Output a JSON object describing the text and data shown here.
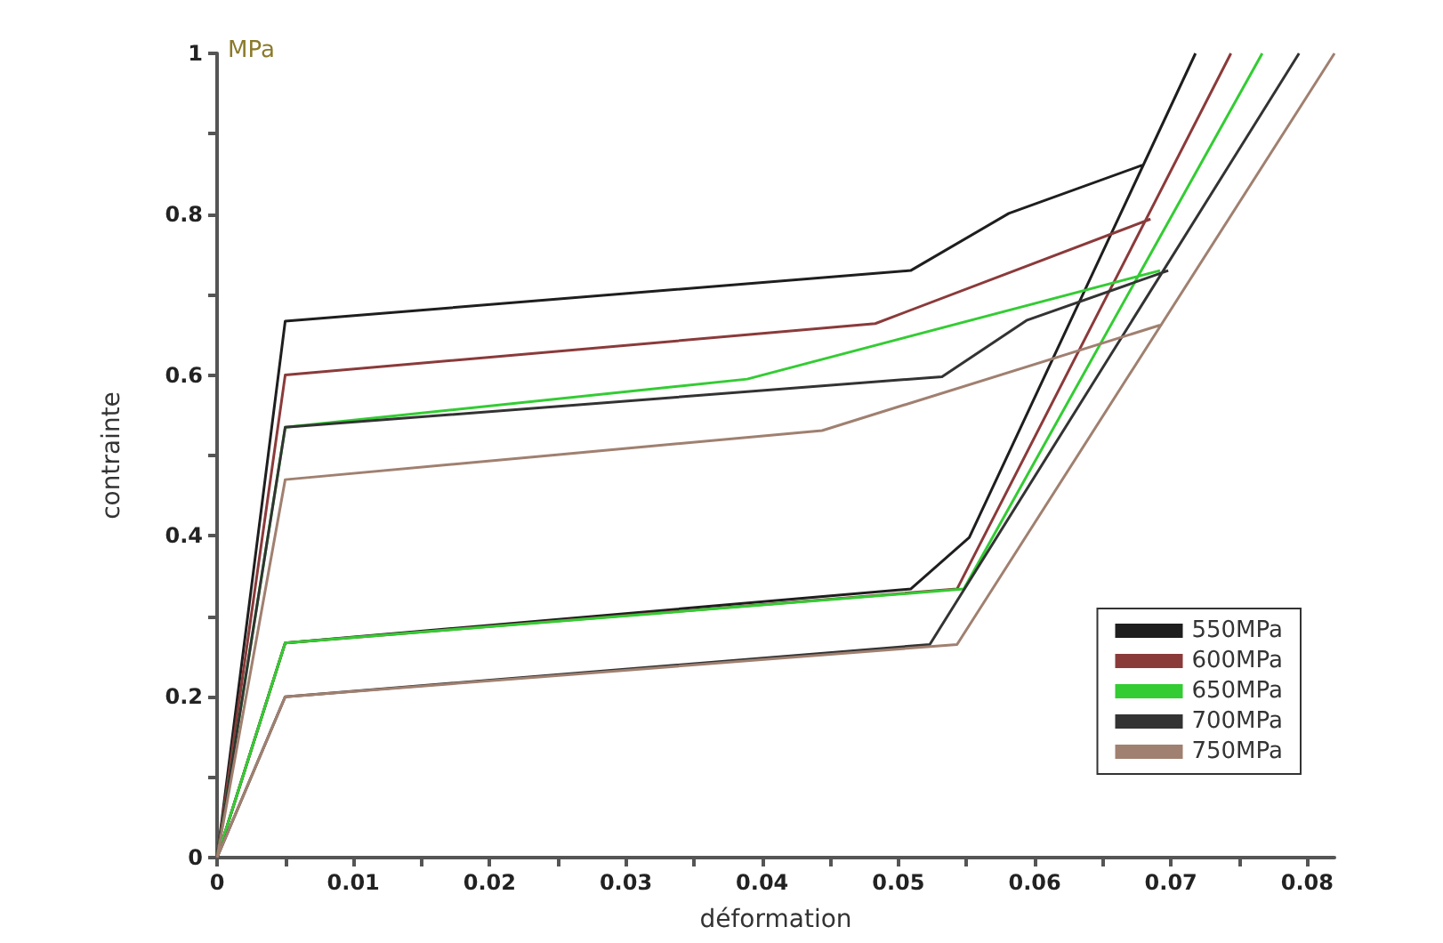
{
  "chart_data": {
    "type": "line",
    "xlabel": "déformation",
    "ylabel": "contrainte",
    "annotations": [
      "MPa"
    ],
    "xlim": [
      0,
      0.082
    ],
    "ylim": [
      0,
      1
    ],
    "xticks": [
      0,
      {
        "value": 0.005,
        "label": null
      },
      0.01,
      {
        "value": 0.015,
        "label": null
      },
      0.02,
      {
        "value": 0.025,
        "label": null
      },
      0.03,
      {
        "value": 0.035,
        "label": null
      },
      0.04,
      {
        "value": 0.045,
        "label": null
      },
      0.05,
      {
        "value": 0.055,
        "label": null
      },
      0.06,
      {
        "value": 0.065,
        "label": null
      },
      0.07,
      {
        "value": 0.075,
        "label": null
      },
      0.08
    ],
    "yticks": [
      0,
      {
        "value": 0.1,
        "label": null
      },
      0.2,
      {
        "value": 0.3,
        "label": null
      },
      0.4,
      {
        "value": 0.5,
        "label": null
      },
      0.6,
      {
        "value": 0.7,
        "label": null
      },
      0.8,
      {
        "value": 0.9,
        "label": null
      },
      1
    ],
    "legend": "bottom right",
    "grid": false,
    "marker": "none",
    "line_style": "solid",
    "series": [
      {
        "name": "550MPa",
        "color": "#1e1e1e",
        "x": [
          0,
          0.005,
          0.0509,
          0.0581,
          0.0679,
          null,
          0,
          0.005,
          0.0509,
          0.0552,
          0.0718
        ],
        "values": [
          0,
          0.667,
          0.73,
          0.801,
          0.861,
          null,
          0,
          0.267,
          0.334,
          0.398,
          1
        ]
      },
      {
        "name": "600MPa",
        "color": "#8b3a3a",
        "x": [
          0,
          0.005,
          0.0483,
          0.0685,
          null,
          0,
          0.005,
          0.0543,
          0.0744
        ],
        "values": [
          0,
          0.6,
          0.664,
          0.794,
          null,
          0,
          0.267,
          0.334,
          1
        ]
      },
      {
        "name": "650MPa",
        "color": "#33cc33",
        "x": [
          0,
          0.005,
          0.0389,
          0.0692,
          null,
          0,
          0.005,
          0.0548,
          0.0767
        ],
        "values": [
          0,
          0.535,
          0.595,
          0.73,
          null,
          0,
          0.267,
          0.334,
          1
        ]
      },
      {
        "name": "700MPa",
        "color": "#333333",
        "x": [
          0,
          0.005,
          0.0532,
          0.0594,
          0.0698,
          null,
          0,
          0.005,
          0.0523,
          0.0794
        ],
        "values": [
          0,
          0.535,
          0.598,
          0.668,
          0.73,
          null,
          0,
          0.2,
          0.265,
          1
        ]
      },
      {
        "name": "750MPa",
        "color": "#a08070",
        "x": [
          0,
          0.005,
          0.0444,
          0.0692,
          null,
          0,
          0.005,
          0.0543,
          0.082
        ],
        "values": [
          0,
          0.47,
          0.531,
          0.662,
          null,
          0,
          0.2,
          0.265,
          1
        ]
      }
    ]
  }
}
